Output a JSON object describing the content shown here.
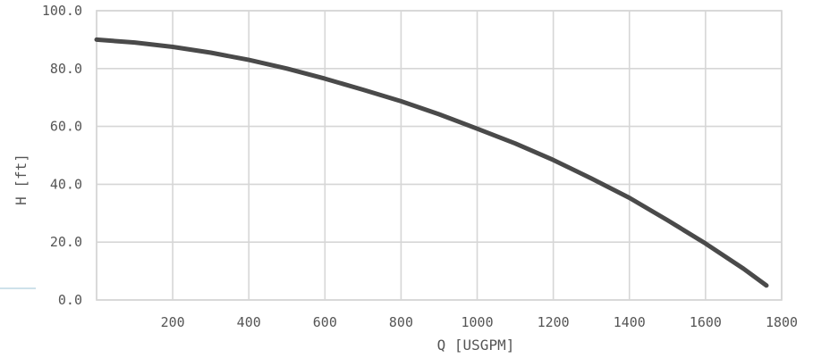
{
  "chart_data": {
    "type": "line",
    "title": "",
    "xlabel": "Q [USGPM]",
    "ylabel": "H [ft]",
    "xlim": [
      0,
      1800
    ],
    "ylim": [
      0,
      100
    ],
    "x_ticks": [
      200,
      400,
      600,
      800,
      1000,
      1200,
      1400,
      1600,
      1800
    ],
    "x_tick_labels": [
      "200",
      "400",
      "600",
      "800",
      "1000",
      "1200",
      "1400",
      "1600",
      "1800"
    ],
    "y_ticks": [
      0,
      20,
      40,
      60,
      80,
      100
    ],
    "y_tick_labels": [
      "0.0",
      "20.0",
      "40.0",
      "60.0",
      "80.0",
      "100.0"
    ],
    "grid": true,
    "colors": {
      "curve": "#4a4a4a",
      "grid": "#d6d6d6",
      "text": "#555555"
    },
    "series": [
      {
        "x": [
          0,
          100,
          200,
          300,
          400,
          500,
          600,
          700,
          800,
          900,
          1000,
          1100,
          1200,
          1300,
          1400,
          1500,
          1600,
          1700,
          1760
        ],
        "y": [
          90,
          89,
          87.5,
          85.5,
          83,
          80,
          76.5,
          72.7,
          68.7,
          64.2,
          59.2,
          54.1,
          48.4,
          42,
          35.3,
          27.6,
          19.5,
          10.8,
          5
        ]
      }
    ]
  }
}
